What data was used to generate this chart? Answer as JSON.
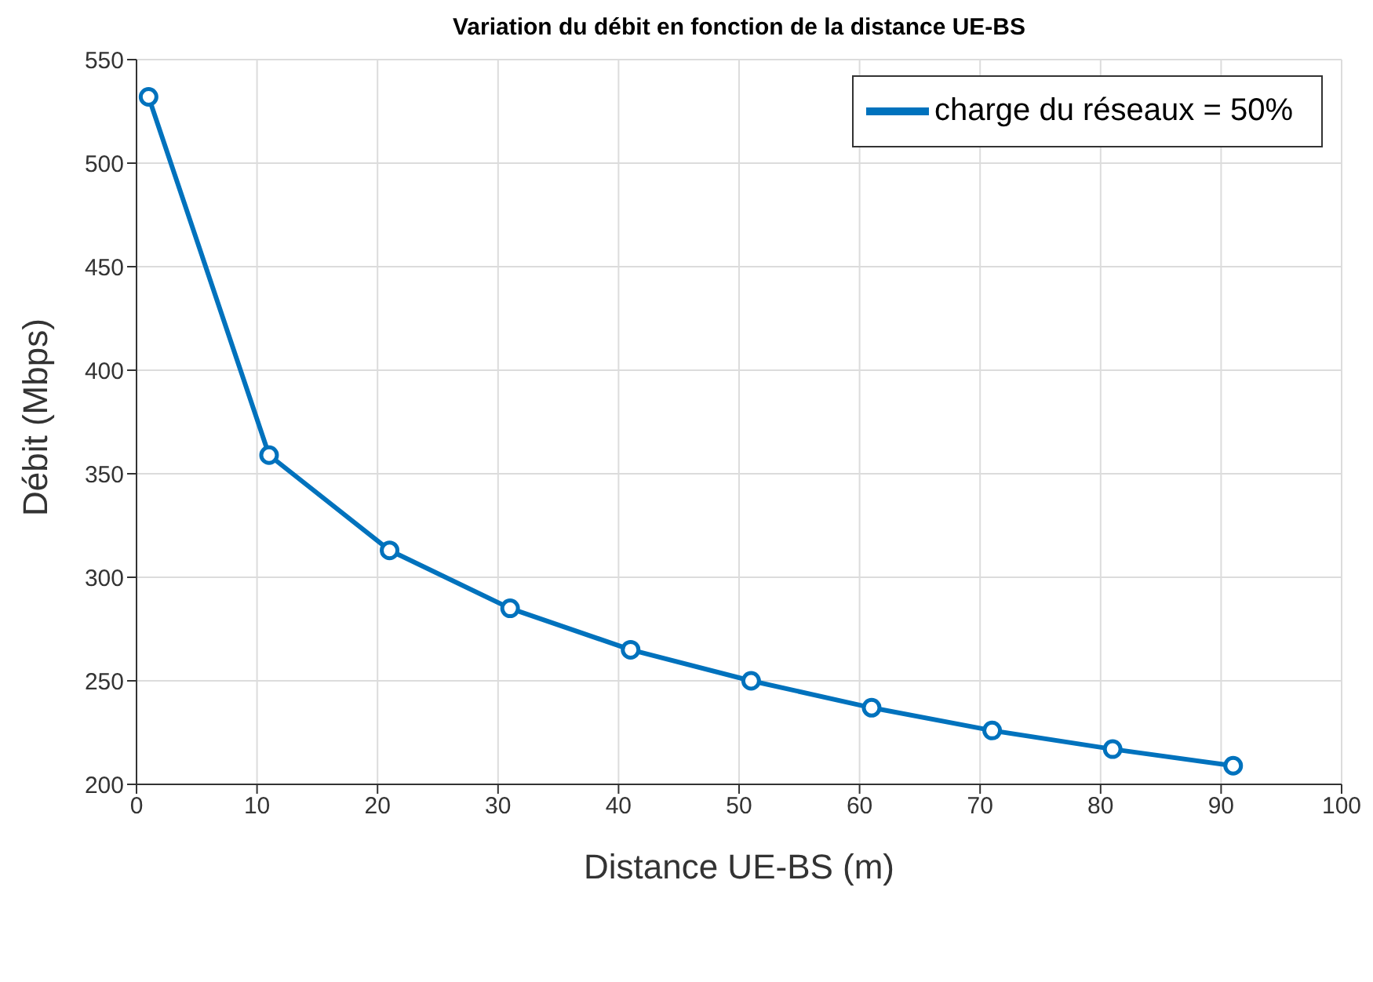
{
  "chart_data": {
    "type": "line",
    "title": "Variation du débit en fonction de la distance UE-BS",
    "xlabel": "Distance UE-BS (m)",
    "ylabel": "Débit (Mbps)",
    "x": [
      1,
      11,
      21,
      31,
      41,
      51,
      61,
      71,
      81,
      91
    ],
    "series": [
      {
        "name": "charge du réseaux = 50%",
        "color": "#0072bd",
        "values": [
          532,
          359,
          313,
          285,
          265,
          250,
          237,
          226,
          217,
          209
        ]
      }
    ],
    "xlim": [
      0,
      100
    ],
    "xticks": [
      0,
      10,
      20,
      30,
      40,
      50,
      60,
      70,
      80,
      90,
      100
    ],
    "ylim": [
      200,
      550
    ],
    "yticks": [
      200,
      250,
      300,
      350,
      400,
      450,
      500,
      550
    ],
    "grid": true,
    "legend": "top right",
    "marker": "circle",
    "line_style": "solid"
  }
}
